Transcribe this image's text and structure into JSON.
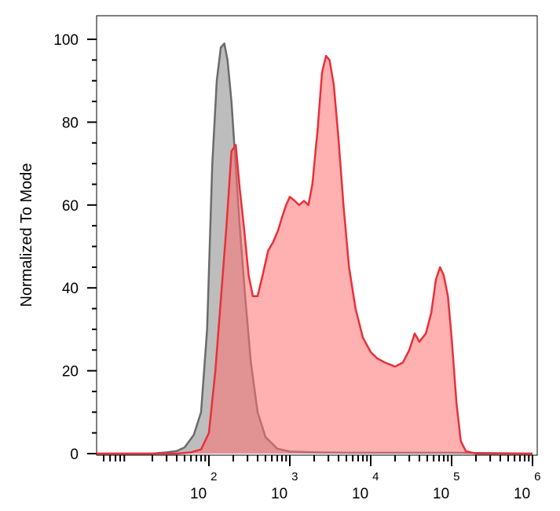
{
  "chart_data": {
    "type": "area",
    "title": "",
    "xlabel": "",
    "ylabel": "Normalized To Mode",
    "xscale": "log",
    "xlim": [
      1,
      1000000
    ],
    "ylim": [
      0,
      105
    ],
    "grid": false,
    "legend": "none",
    "y_ticks": [
      0,
      20,
      40,
      60,
      80,
      100
    ],
    "y_tick_labels": [
      "0",
      "20",
      "40",
      "60",
      "80",
      "100"
    ],
    "x_ticks": [
      100,
      1000,
      10000,
      100000,
      1000000
    ],
    "x_tick_labels": [
      {
        "base": "10",
        "exp": "2"
      },
      {
        "base": "10",
        "exp": "3"
      },
      {
        "base": "10",
        "exp": "4"
      },
      {
        "base": "10",
        "exp": "5"
      },
      {
        "base": "10",
        "exp": "6"
      }
    ],
    "series": [
      {
        "fill": "#bdbdbd",
        "fill_opacity": 1,
        "stroke": "#6b6b6b",
        "points": [
          [
            1,
            0
          ],
          [
            20,
            0
          ],
          [
            30,
            0.3
          ],
          [
            40,
            0.6
          ],
          [
            50,
            1.5
          ],
          [
            65,
            4.5
          ],
          [
            80,
            10
          ],
          [
            95,
            30
          ],
          [
            110,
            70
          ],
          [
            125,
            90
          ],
          [
            140,
            98
          ],
          [
            155,
            99
          ],
          [
            170,
            95
          ],
          [
            190,
            85
          ],
          [
            210,
            72
          ],
          [
            240,
            55
          ],
          [
            280,
            38
          ],
          [
            330,
            22
          ],
          [
            400,
            10
          ],
          [
            500,
            4
          ],
          [
            700,
            1.2
          ],
          [
            1000,
            0.5
          ],
          [
            2000,
            0.3
          ],
          [
            5000,
            0.2
          ],
          [
            20000,
            0.2
          ],
          [
            100000,
            0.2
          ],
          [
            1000000,
            0
          ]
        ]
      },
      {
        "fill": "#ff6f6f",
        "fill_opacity": 0.55,
        "stroke": "#e8303a",
        "points": [
          [
            1,
            0
          ],
          [
            40,
            0
          ],
          [
            60,
            0.3
          ],
          [
            80,
            1
          ],
          [
            100,
            5
          ],
          [
            120,
            20
          ],
          [
            140,
            37
          ],
          [
            165,
            55
          ],
          [
            190,
            73
          ],
          [
            215,
            74.5
          ],
          [
            240,
            64
          ],
          [
            270,
            55
          ],
          [
            310,
            43
          ],
          [
            350,
            38
          ],
          [
            400,
            38
          ],
          [
            460,
            43
          ],
          [
            540,
            49
          ],
          [
            620,
            51
          ],
          [
            720,
            54
          ],
          [
            800,
            57
          ],
          [
            900,
            60
          ],
          [
            1000,
            62
          ],
          [
            1150,
            61
          ],
          [
            1300,
            60
          ],
          [
            1500,
            61
          ],
          [
            1700,
            60
          ],
          [
            1900,
            65
          ],
          [
            2200,
            78
          ],
          [
            2500,
            92
          ],
          [
            2800,
            96
          ],
          [
            3100,
            95
          ],
          [
            3500,
            89
          ],
          [
            4000,
            76
          ],
          [
            4600,
            60
          ],
          [
            5400,
            45
          ],
          [
            6500,
            35
          ],
          [
            8000,
            28
          ],
          [
            10000,
            24.5
          ],
          [
            12000,
            23
          ],
          [
            15000,
            22
          ],
          [
            20000,
            21
          ],
          [
            25000,
            22
          ],
          [
            30000,
            25
          ],
          [
            35000,
            29
          ],
          [
            40000,
            27
          ],
          [
            48000,
            29
          ],
          [
            56000,
            34
          ],
          [
            64000,
            42
          ],
          [
            72000,
            45
          ],
          [
            80000,
            43
          ],
          [
            90000,
            38
          ],
          [
            100000,
            28
          ],
          [
            115000,
            12
          ],
          [
            130000,
            3
          ],
          [
            150000,
            0.6
          ],
          [
            200000,
            0
          ],
          [
            1000000,
            0
          ]
        ]
      }
    ]
  }
}
